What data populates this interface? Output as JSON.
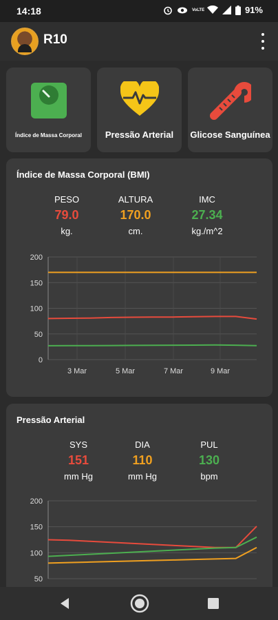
{
  "status": {
    "time": "14:18",
    "battery": "91%",
    "network": "VoLTE"
  },
  "app": {
    "title": "R10"
  },
  "tiles": [
    {
      "label": "Índice de Massa Corporal"
    },
    {
      "label": "Pressão Arterial"
    },
    {
      "label": "Glicose Sanguínea"
    }
  ],
  "bmi": {
    "title": "Índice de Massa Corporal (BMI)",
    "metrics": [
      {
        "name": "PESO",
        "value": "79.0",
        "unit": "kg."
      },
      {
        "name": "ALTURA",
        "value": "170.0",
        "unit": "cm."
      },
      {
        "name": "IMC",
        "value": "27.34",
        "unit": "kg./m^2"
      }
    ]
  },
  "bp": {
    "title": "Pressão Arterial",
    "metrics": [
      {
        "name": "SYS",
        "value": "151",
        "unit": "mm Hg"
      },
      {
        "name": "DIA",
        "value": "110",
        "unit": "mm Hg"
      },
      {
        "name": "PUL",
        "value": "130",
        "unit": "bpm"
      }
    ]
  },
  "colors": {
    "red": "#e84b3c",
    "orange": "#f0a020",
    "green": "#4caf50"
  },
  "chart_data": [
    {
      "type": "line",
      "ylim": [
        0,
        200
      ],
      "yticks": [
        "0",
        "50",
        "100",
        "150",
        "200"
      ],
      "xticks": [
        "3 Mar",
        "5 Mar",
        "7 Mar",
        "9 Mar"
      ],
      "x": [
        1,
        2,
        3,
        4,
        5,
        6,
        7,
        8,
        9,
        10,
        11
      ],
      "series": [
        {
          "color": "#f0a020",
          "values": [
            170,
            170,
            170,
            170,
            170,
            170,
            170,
            170,
            170,
            170,
            170
          ]
        },
        {
          "color": "#e84b3c",
          "values": [
            80,
            80.5,
            81,
            82,
            82.5,
            83,
            83,
            83.5,
            84,
            84,
            79
          ]
        },
        {
          "color": "#4caf50",
          "values": [
            27,
            27.1,
            27.2,
            27.4,
            27.6,
            27.8,
            28,
            28.2,
            28.4,
            28,
            27.3
          ]
        }
      ]
    },
    {
      "type": "line",
      "ylim": [
        50,
        200
      ],
      "yticks": [
        "50",
        "100",
        "150",
        "200"
      ],
      "series": [
        {
          "color": "#e84b3c",
          "values": [
            125,
            124,
            122,
            120,
            118,
            116,
            114,
            112,
            110,
            110,
            151
          ]
        },
        {
          "color": "#4caf50",
          "values": [
            93,
            95,
            97,
            99,
            101,
            103,
            105,
            107,
            109,
            110,
            130
          ]
        },
        {
          "color": "#f0a020",
          "values": [
            80,
            81,
            82,
            83,
            84,
            85,
            86,
            87,
            88,
            89,
            110
          ]
        }
      ]
    }
  ]
}
